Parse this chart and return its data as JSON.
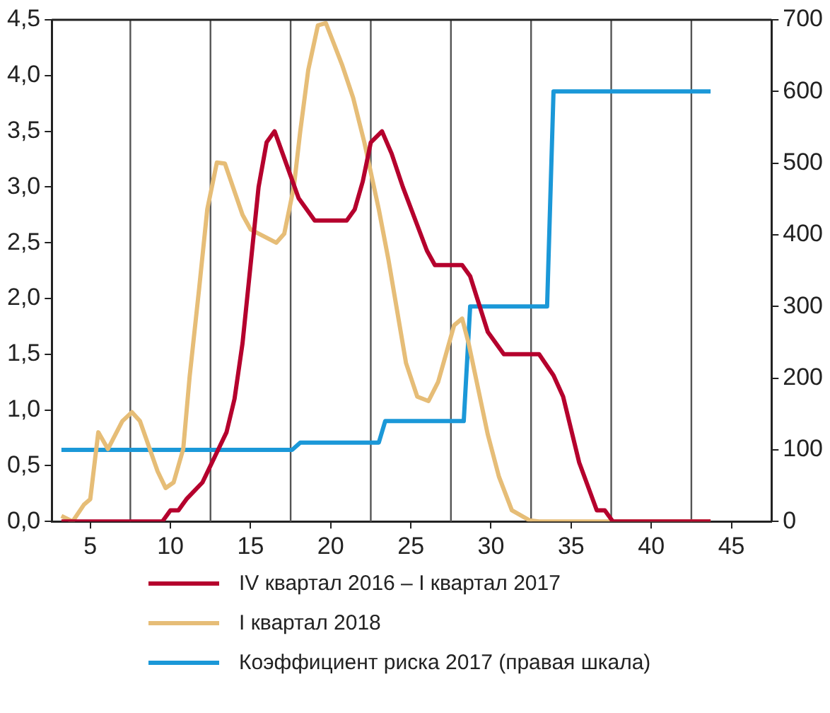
{
  "chart_data": {
    "type": "line",
    "xlim": [
      2.6,
      47.5
    ],
    "xticks": [
      5,
      10,
      15,
      20,
      25,
      30,
      35,
      40,
      45
    ],
    "ylim": [
      0,
      4.5
    ],
    "yticks": [
      {
        "value": 0,
        "label": "0,0"
      },
      {
        "value": 0.5,
        "label": "0,5"
      },
      {
        "value": 1,
        "label": "1,0"
      },
      {
        "value": 1.5,
        "label": "1,5"
      },
      {
        "value": 2,
        "label": "2,0"
      },
      {
        "value": 2.5,
        "label": "2,5"
      },
      {
        "value": 3,
        "label": "3,0"
      },
      {
        "value": 3.5,
        "label": "3,5"
      },
      {
        "value": 4,
        "label": "4,0"
      },
      {
        "value": 4.5,
        "label": "4,5"
      }
    ],
    "y2lim": [
      0,
      700
    ],
    "y2ticks": [
      0,
      100,
      200,
      300,
      400,
      500,
      600,
      700
    ],
    "grid": false,
    "legend": "bottom",
    "marker": "none",
    "line_style": "solid",
    "ref_lines": [
      {
        "axis": "x",
        "value": 7.5,
        "color": "#555555"
      },
      {
        "axis": "x",
        "value": 12.5,
        "color": "#555555"
      },
      {
        "axis": "x",
        "value": 17.5,
        "color": "#555555"
      },
      {
        "axis": "x",
        "value": 22.5,
        "color": "#555555"
      },
      {
        "axis": "x",
        "value": 27.5,
        "color": "#555555"
      },
      {
        "axis": "x",
        "value": 32.5,
        "color": "#555555"
      },
      {
        "axis": "x",
        "value": 37.5,
        "color": "#555555"
      },
      {
        "axis": "x",
        "value": 42.5,
        "color": "#555555"
      }
    ],
    "series": [
      {
        "name": "IV квартал 2016 – I квартал 2017",
        "color": "#b5002d",
        "x": [
          3.2,
          9.5,
          10,
          10.5,
          11,
          12,
          12.5,
          13,
          13.5,
          14,
          14.5,
          15,
          15.5,
          16,
          16.5,
          17,
          17.5,
          18,
          19,
          21,
          21.5,
          22,
          22.5,
          23.2,
          23.8,
          24.5,
          26,
          26.5,
          28.2,
          28.7,
          29.8,
          30.8,
          33,
          33.9,
          34.5,
          35.5,
          36.6,
          37.1,
          37.6,
          43.7
        ],
        "values": [
          0,
          0,
          0.1,
          0.1,
          0.2,
          0.35,
          0.5,
          0.65,
          0.8,
          1.1,
          1.6,
          2.3,
          3,
          3.4,
          3.5,
          3.3,
          3.1,
          2.9,
          2.7,
          2.7,
          2.8,
          3.05,
          3.4,
          3.5,
          3.3,
          3,
          2.43,
          2.3,
          2.3,
          2.2,
          1.7,
          1.5,
          1.5,
          1.31,
          1.12,
          0.53,
          0.1,
          0.1,
          0,
          0
        ]
      },
      {
        "name": "I квартал 2018",
        "color": "#e6bd77",
        "x": [
          3.2,
          3.9,
          4.6,
          5,
          5.5,
          6.1,
          7,
          7.6,
          8.1,
          9.2,
          9.7,
          10.2,
          10.8,
          11.2,
          11.8,
          12.3,
          12.9,
          13.4,
          14.5,
          15,
          16.6,
          17.1,
          17.7,
          18.1,
          18.6,
          19.2,
          19.7,
          20.7,
          21.4,
          22.1,
          23,
          23.6,
          24.7,
          25.4,
          26.1,
          26.7,
          27.7,
          28.2,
          28.6,
          29.8,
          30.5,
          31.3,
          32.4,
          33,
          43.7
        ],
        "values": [
          0.05,
          0,
          0.15,
          0.2,
          0.8,
          0.65,
          0.9,
          0.98,
          0.9,
          0.45,
          0.3,
          0.35,
          0.65,
          1.3,
          2.1,
          2.8,
          3.22,
          3.21,
          2.75,
          2.62,
          2.5,
          2.58,
          3,
          3.5,
          4.05,
          4.45,
          4.47,
          4.1,
          3.8,
          3.4,
          2.8,
          2.35,
          1.42,
          1.12,
          1.08,
          1.25,
          1.76,
          1.82,
          1.6,
          0.78,
          0.4,
          0.1,
          0.01,
          0,
          0
        ]
      },
      {
        "name": "Коэффициент риска 2017 (правая шкала)",
        "color": "#1b98d8",
        "axis": "y2",
        "x": [
          3.2,
          17.6,
          18.1,
          23,
          23.4,
          28.3,
          28.7,
          33.5,
          33.9,
          43.7
        ],
        "values": [
          100,
          100,
          110,
          110,
          140,
          140,
          300,
          300,
          600,
          600
        ]
      }
    ]
  }
}
